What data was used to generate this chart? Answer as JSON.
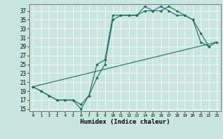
{
  "title": "",
  "xlabel": "Humidex (Indice chaleur)",
  "background_color": "#c8e6df",
  "grid_color": "#ffffff",
  "line_color": "#1e6b5e",
  "xlim": [
    -0.5,
    23.5
  ],
  "ylim": [
    14.5,
    38.5
  ],
  "yticks": [
    15,
    17,
    19,
    21,
    23,
    25,
    27,
    29,
    31,
    33,
    35,
    37
  ],
  "xticks": [
    0,
    1,
    2,
    3,
    4,
    5,
    6,
    7,
    8,
    9,
    10,
    11,
    12,
    13,
    14,
    15,
    16,
    17,
    18,
    19,
    20,
    21,
    22,
    23
  ],
  "line1_x": [
    0,
    1,
    2,
    3,
    4,
    5,
    6,
    7,
    8,
    9,
    10,
    11,
    12,
    13,
    14,
    15,
    16,
    17,
    18,
    19,
    20,
    21,
    22
  ],
  "line1_y": [
    20,
    19,
    18,
    17,
    17,
    17,
    16,
    18,
    22,
    25,
    35,
    36,
    36,
    36,
    37,
    37,
    37,
    38,
    37,
    36,
    35,
    30,
    29
  ],
  "line2_x": [
    0,
    1,
    2,
    3,
    4,
    5,
    6,
    7,
    8,
    9,
    10,
    11,
    12,
    13,
    14,
    15,
    16,
    17,
    18,
    19,
    20,
    21,
    22,
    23
  ],
  "line2_y": [
    20,
    19,
    18,
    17,
    17,
    17,
    15,
    18,
    25,
    26,
    36,
    36,
    36,
    36,
    38,
    37,
    38,
    37,
    36,
    36,
    35,
    32,
    29,
    30
  ],
  "line3_x": [
    0,
    23
  ],
  "line3_y": [
    20,
    30
  ]
}
